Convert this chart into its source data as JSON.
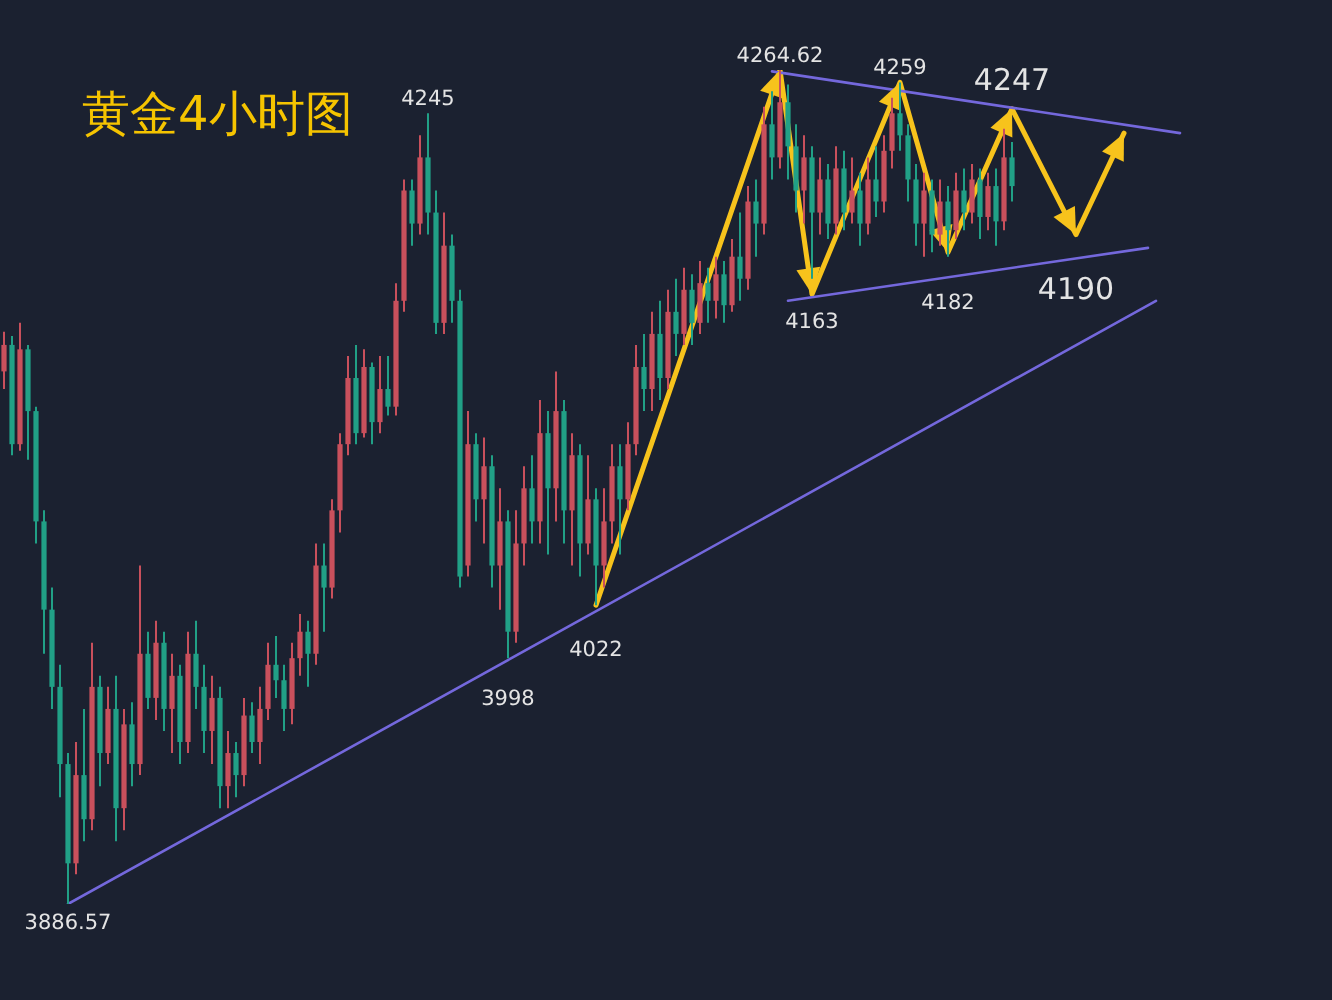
{
  "chart_data": {
    "type": "candlestick",
    "title": "黄金4小时图",
    "tick_labels": false,
    "categories": [
      null,
      null,
      null,
      null,
      null,
      null,
      null,
      null,
      null,
      null,
      null,
      null,
      null,
      null,
      null,
      null,
      null,
      null,
      null,
      null,
      null,
      null,
      null,
      null,
      null,
      null,
      null,
      null,
      null,
      null,
      null,
      null,
      null,
      null,
      null,
      null,
      null,
      null,
      null,
      null,
      null,
      null,
      null,
      null,
      null,
      null,
      null,
      null,
      null,
      null,
      null,
      null,
      null,
      null,
      null,
      null,
      null,
      null,
      null,
      null,
      null,
      null,
      null,
      null,
      null,
      null,
      null,
      null,
      null,
      null,
      null,
      null,
      null,
      null,
      null,
      null,
      null,
      null,
      null,
      null,
      null,
      null,
      null,
      null,
      null,
      null,
      null,
      null,
      null,
      null,
      null,
      null,
      null,
      null,
      null,
      null,
      null,
      null,
      null,
      null,
      null,
      null,
      null,
      null,
      null,
      null,
      null,
      null,
      null,
      null,
      null,
      null,
      null,
      null,
      null,
      null,
      null,
      null,
      null,
      null,
      null,
      null,
      null,
      null,
      null,
      null,
      null,
      null,
      null,
      null,
      null,
      null,
      null,
      null,
      null,
      null,
      null,
      null,
      null,
      null,
      null,
      null,
      null,
      null,
      null,
      null,
      null,
      null
    ],
    "ohlc": [
      [
        4128,
        4146,
        4120,
        4140
      ],
      [
        4140,
        4144,
        4090,
        4095
      ],
      [
        4095,
        4150,
        4092,
        4138
      ],
      [
        4138,
        4140,
        4088,
        4110
      ],
      [
        4110,
        4112,
        4050,
        4060
      ],
      [
        4060,
        4065,
        4000,
        4020
      ],
      [
        4020,
        4030,
        3975,
        3985
      ],
      [
        3985,
        3995,
        3935,
        3950
      ],
      [
        3950,
        3955,
        3886.57,
        3905
      ],
      [
        3905,
        3960,
        3900,
        3945
      ],
      [
        3945,
        3975,
        3915,
        3925
      ],
      [
        3925,
        4005,
        3920,
        3985
      ],
      [
        3985,
        3990,
        3940,
        3955
      ],
      [
        3955,
        3985,
        3950,
        3975
      ],
      [
        3975,
        3990,
        3915,
        3930
      ],
      [
        3930,
        3975,
        3920,
        3968
      ],
      [
        3968,
        3978,
        3940,
        3950
      ],
      [
        3950,
        4040,
        3945,
        4000
      ],
      [
        4000,
        4010,
        3975,
        3980
      ],
      [
        3980,
        4015,
        3970,
        4005
      ],
      [
        4005,
        4010,
        3965,
        3975
      ],
      [
        3975,
        4000,
        3955,
        3990
      ],
      [
        3990,
        3995,
        3950,
        3960
      ],
      [
        3960,
        4010,
        3955,
        4000
      ],
      [
        4000,
        4015,
        3975,
        3985
      ],
      [
        3985,
        3995,
        3955,
        3965
      ],
      [
        3965,
        3990,
        3950,
        3980
      ],
      [
        3980,
        3985,
        3930,
        3940
      ],
      [
        3940,
        3965,
        3930,
        3955
      ],
      [
        3955,
        3960,
        3935,
        3945
      ],
      [
        3945,
        3980,
        3940,
        3972
      ],
      [
        3972,
        3978,
        3955,
        3960
      ],
      [
        3960,
        3985,
        3950,
        3975
      ],
      [
        3975,
        4005,
        3970,
        3995
      ],
      [
        3995,
        4008,
        3980,
        3988
      ],
      [
        3988,
        3995,
        3965,
        3975
      ],
      [
        3975,
        4005,
        3968,
        3998
      ],
      [
        3998,
        4018,
        3990,
        4010
      ],
      [
        4010,
        4015,
        3985,
        4000
      ],
      [
        4000,
        4050,
        3995,
        4040
      ],
      [
        4040,
        4050,
        4010,
        4030
      ],
      [
        4030,
        4070,
        4025,
        4065
      ],
      [
        4065,
        4100,
        4055,
        4095
      ],
      [
        4095,
        4135,
        4090,
        4125
      ],
      [
        4125,
        4140,
        4095,
        4100
      ],
      [
        4100,
        4138,
        4098,
        4130
      ],
      [
        4130,
        4132,
        4095,
        4105
      ],
      [
        4105,
        4135,
        4100,
        4120
      ],
      [
        4120,
        4135,
        4108,
        4112
      ],
      [
        4112,
        4168,
        4108,
        4160
      ],
      [
        4160,
        4215,
        4155,
        4210
      ],
      [
        4210,
        4215,
        4185,
        4195
      ],
      [
        4195,
        4235,
        4190,
        4225
      ],
      [
        4225,
        4245,
        4190,
        4200
      ],
      [
        4200,
        4210,
        4145,
        4150
      ],
      [
        4150,
        4200,
        4145,
        4185
      ],
      [
        4185,
        4190,
        4150,
        4160
      ],
      [
        4160,
        4165,
        4030,
        4035
      ],
      [
        4040,
        4110,
        4035,
        4095
      ],
      [
        4095,
        4100,
        4060,
        4070
      ],
      [
        4070,
        4098,
        4050,
        4085
      ],
      [
        4085,
        4090,
        4030,
        4040
      ],
      [
        4040,
        4075,
        4020,
        4060
      ],
      [
        4060,
        4065,
        3998,
        4010
      ],
      [
        4010,
        4065,
        4005,
        4050
      ],
      [
        4050,
        4085,
        4040,
        4075
      ],
      [
        4075,
        4090,
        4050,
        4060
      ],
      [
        4060,
        4115,
        4050,
        4100
      ],
      [
        4100,
        4110,
        4045,
        4075
      ],
      [
        4075,
        4128,
        4060,
        4110
      ],
      [
        4110,
        4115,
        4050,
        4065
      ],
      [
        4065,
        4100,
        4040,
        4090
      ],
      [
        4090,
        4095,
        4035,
        4050
      ],
      [
        4050,
        4090,
        4045,
        4070
      ],
      [
        4070,
        4075,
        4022,
        4040
      ],
      [
        4040,
        4075,
        4030,
        4060
      ],
      [
        4060,
        4095,
        4050,
        4085
      ],
      [
        4085,
        4095,
        4045,
        4070
      ],
      [
        4070,
        4105,
        4065,
        4095
      ],
      [
        4095,
        4140,
        4090,
        4130
      ],
      [
        4130,
        4145,
        4110,
        4120
      ],
      [
        4120,
        4155,
        4110,
        4145
      ],
      [
        4145,
        4160,
        4115,
        4125
      ],
      [
        4125,
        4165,
        4120,
        4155
      ],
      [
        4155,
        4170,
        4135,
        4145
      ],
      [
        4145,
        4175,
        4140,
        4165
      ],
      [
        4165,
        4172,
        4140,
        4150
      ],
      [
        4150,
        4178,
        4145,
        4168
      ],
      [
        4168,
        4175,
        4150,
        4160
      ],
      [
        4160,
        4180,
        4152,
        4172
      ],
      [
        4172,
        4178,
        4150,
        4158
      ],
      [
        4158,
        4188,
        4155,
        4180
      ],
      [
        4180,
        4200,
        4160,
        4170
      ],
      [
        4170,
        4212,
        4165,
        4205
      ],
      [
        4205,
        4215,
        4180,
        4195
      ],
      [
        4195,
        4248,
        4190,
        4240
      ],
      [
        4240,
        4255,
        4215,
        4225
      ],
      [
        4225,
        4264.62,
        4220,
        4250
      ],
      [
        4250,
        4258,
        4215,
        4230
      ],
      [
        4230,
        4240,
        4200,
        4210
      ],
      [
        4210,
        4235,
        4195,
        4225
      ],
      [
        4225,
        4230,
        4170,
        4200
      ],
      [
        4200,
        4225,
        4190,
        4215
      ],
      [
        4215,
        4222,
        4188,
        4195
      ],
      [
        4195,
        4230,
        4190,
        4220
      ],
      [
        4220,
        4228,
        4192,
        4200
      ],
      [
        4200,
        4225,
        4195,
        4210
      ],
      [
        4210,
        4218,
        4185,
        4195
      ],
      [
        4195,
        4225,
        4190,
        4215
      ],
      [
        4215,
        4230,
        4198,
        4205
      ],
      [
        4205,
        4235,
        4200,
        4228
      ],
      [
        4228,
        4252,
        4220,
        4245
      ],
      [
        4245,
        4259,
        4228,
        4235
      ],
      [
        4235,
        4240,
        4205,
        4215
      ],
      [
        4215,
        4222,
        4185,
        4195
      ],
      [
        4195,
        4218,
        4180,
        4210
      ],
      [
        4210,
        4215,
        4182,
        4190
      ],
      [
        4190,
        4215,
        4185,
        4205
      ],
      [
        4205,
        4212,
        4180,
        4192
      ],
      [
        4192,
        4218,
        4188,
        4210
      ],
      [
        4210,
        4220,
        4192,
        4200
      ],
      [
        4200,
        4222,
        4195,
        4215
      ],
      [
        4215,
        4220,
        4188,
        4198
      ],
      [
        4198,
        4218,
        4192,
        4212
      ],
      [
        4212,
        4220,
        4185,
        4196
      ],
      [
        4196,
        4238,
        4192,
        4225
      ],
      [
        4225,
        4232,
        4205,
        4212
      ],
      null,
      null,
      null,
      null,
      null,
      null,
      null,
      null,
      null,
      null,
      null,
      null,
      null,
      null,
      null,
      null,
      null,
      null,
      null,
      null,
      null
    ],
    "colors": [
      "#c9505c",
      "#21a086",
      "#c9505c",
      "#21a086",
      "#21a086",
      "#21a086",
      "#21a086",
      "#21a086",
      "#21a086",
      "#c9505c",
      "#21a086",
      "#c9505c",
      "#21a086",
      "#c9505c",
      "#21a086",
      "#c9505c",
      "#21a086",
      "#c9505c",
      "#21a086",
      "#c9505c",
      "#21a086",
      "#c9505c",
      "#21a086",
      "#c9505c",
      "#21a086",
      "#21a086",
      "#c9505c",
      "#21a086",
      "#c9505c",
      "#21a086",
      "#c9505c",
      "#21a086",
      "#c9505c",
      "#c9505c",
      "#21a086",
      "#21a086",
      "#c9505c",
      "#c9505c",
      "#21a086",
      "#c9505c",
      "#21a086",
      "#c9505c",
      "#c9505c",
      "#c9505c",
      "#21a086",
      "#c9505c",
      "#21a086",
      "#c9505c",
      "#21a086",
      "#c9505c",
      "#c9505c",
      "#21a086",
      "#c9505c",
      "#21a086",
      "#21a086",
      "#c9505c",
      "#21a086",
      "#21a086",
      "#c9505c",
      "#21a086",
      "#c9505c",
      "#21a086",
      "#c9505c",
      "#21a086",
      "#c9505c",
      "#c9505c",
      "#21a086",
      "#c9505c",
      "#21a086",
      "#c9505c",
      "#21a086",
      "#c9505c",
      "#21a086",
      "#c9505c",
      "#21a086",
      "#c9505c",
      "#c9505c",
      "#21a086",
      "#c9505c",
      "#c9505c",
      "#21a086",
      "#c9505c",
      "#21a086",
      "#c9505c",
      "#21a086",
      "#c9505c",
      "#21a086",
      "#c9505c",
      "#21a086",
      "#c9505c",
      "#21a086",
      "#c9505c",
      "#21a086",
      "#c9505c",
      "#21a086",
      "#c9505c",
      "#21a086",
      "#c9505c",
      "#21a086",
      "#21a086",
      "#c9505c",
      "#21a086",
      "#c9505c",
      "#21a086",
      "#c9505c",
      "#21a086",
      "#c9505c",
      "#21a086",
      "#c9505c",
      "#21a086",
      "#c9505c",
      "#c9505c",
      "#21a086",
      "#21a086",
      "#21a086",
      "#c9505c",
      "#21a086",
      "#c9505c",
      "#21a086",
      "#c9505c",
      "#21a086",
      "#c9505c",
      "#21a086",
      "#c9505c",
      "#21a086",
      "#c9505c",
      "#21a086",
      null,
      null,
      null,
      null,
      null,
      null,
      null,
      null,
      null,
      null,
      null,
      null,
      null,
      null,
      null,
      null,
      null,
      null,
      null,
      null,
      null
    ],
    "series": [
      {
        "type": "line",
        "color": "#f7c31c",
        "values": [
          null,
          null,
          null,
          null,
          null,
          null,
          null,
          null,
          null,
          null,
          null,
          null,
          null,
          null,
          null,
          null,
          null,
          null,
          null,
          null,
          null,
          null,
          null,
          null,
          null,
          null,
          null,
          null,
          null,
          null,
          null,
          null,
          null,
          null,
          null,
          null,
          null,
          null,
          null,
          null,
          null,
          null,
          null,
          null,
          null,
          null,
          null,
          null,
          null,
          null,
          null,
          null,
          null,
          null,
          null,
          null,
          null,
          null,
          null,
          null,
          null,
          null,
          null,
          null,
          null,
          null,
          null,
          null,
          null,
          null,
          null,
          null,
          null,
          null,
          4022,
          null,
          null,
          null,
          null,
          null,
          null,
          null,
          null,
          null,
          null,
          null,
          null,
          null,
          null,
          null,
          null,
          null,
          null,
          null,
          null,
          null,
          null,
          4264.62,
          null,
          null,
          null,
          4163,
          null,
          null,
          null,
          null,
          null,
          null,
          null,
          null,
          null,
          null,
          4259,
          null,
          null,
          null,
          null,
          null,
          4182,
          null,
          null,
          null,
          null,
          null,
          null,
          null,
          4247,
          null,
          null,
          null,
          null,
          null,
          null,
          null,
          4190,
          null,
          null,
          null,
          null,
          null,
          4236,
          null,
          null,
          null,
          null,
          null,
          null,
          null
        ]
      },
      {
        "type": "line",
        "color": "#7468dc",
        "values": [
          null,
          null,
          null,
          null,
          null,
          null,
          null,
          null,
          null,
          null,
          null,
          null,
          null,
          null,
          null,
          null,
          null,
          null,
          null,
          null,
          null,
          null,
          null,
          null,
          null,
          null,
          null,
          null,
          null,
          null,
          null,
          null,
          null,
          null,
          null,
          null,
          null,
          null,
          null,
          null,
          null,
          null,
          null,
          null,
          null,
          null,
          null,
          null,
          null,
          null,
          null,
          null,
          null,
          null,
          null,
          null,
          null,
          null,
          null,
          null,
          null,
          null,
          null,
          null,
          null,
          null,
          null,
          null,
          null,
          null,
          null,
          null,
          null,
          null,
          null,
          null,
          null,
          null,
          null,
          null,
          null,
          null,
          null,
          null,
          null,
          null,
          null,
          null,
          null,
          null,
          null,
          null,
          null,
          null,
          null,
          null,
          4264,
          null,
          null,
          null,
          null,
          null,
          null,
          null,
          null,
          null,
          null,
          null,
          null,
          null,
          null,
          null,
          null,
          null,
          null,
          null,
          null,
          null,
          null,
          null,
          null,
          null,
          null,
          null,
          null,
          null,
          null,
          null,
          null,
          null,
          null,
          null,
          null,
          null,
          null,
          null,
          null,
          null,
          null,
          null,
          null,
          null,
          null,
          null,
          null,
          null,
          null,
          4236
        ]
      },
      {
        "type": "line",
        "color": "#7468dc",
        "values": [
          null,
          null,
          null,
          null,
          null,
          null,
          null,
          null,
          null,
          null,
          null,
          null,
          null,
          null,
          null,
          null,
          null,
          null,
          null,
          null,
          null,
          null,
          null,
          null,
          null,
          null,
          null,
          null,
          null,
          null,
          null,
          null,
          null,
          null,
          null,
          null,
          null,
          null,
          null,
          null,
          null,
          null,
          null,
          null,
          null,
          null,
          null,
          null,
          null,
          null,
          null,
          null,
          null,
          null,
          null,
          null,
          null,
          null,
          null,
          null,
          null,
          null,
          null,
          null,
          null,
          null,
          null,
          null,
          null,
          null,
          null,
          null,
          null,
          null,
          null,
          null,
          null,
          null,
          null,
          null,
          null,
          null,
          null,
          null,
          null,
          null,
          null,
          null,
          null,
          null,
          null,
          null,
          null,
          null,
          null,
          null,
          null,
          null,
          4160,
          null,
          null,
          null,
          null,
          null,
          null,
          null,
          null,
          null,
          null,
          null,
          null,
          null,
          null,
          null,
          null,
          null,
          null,
          null,
          null,
          null,
          null,
          null,
          null,
          null,
          null,
          null,
          null,
          null,
          null,
          null,
          null,
          null,
          null,
          null,
          null,
          null,
          null,
          null,
          null,
          null,
          null,
          null,
          null,
          4184,
          null,
          null,
          null,
          null
        ]
      },
      {
        "type": "line",
        "color": "#7468dc",
        "values": [
          null,
          null,
          null,
          null,
          null,
          null,
          null,
          null,
          3886.57,
          null,
          null,
          null,
          null,
          null,
          null,
          null,
          null,
          null,
          null,
          null,
          null,
          null,
          null,
          null,
          null,
          null,
          null,
          null,
          null,
          null,
          null,
          null,
          null,
          null,
          null,
          null,
          null,
          null,
          null,
          null,
          null,
          null,
          null,
          null,
          null,
          null,
          null,
          null,
          null,
          null,
          null,
          null,
          null,
          null,
          null,
          null,
          null,
          null,
          null,
          null,
          null,
          null,
          null,
          null,
          null,
          null,
          null,
          null,
          null,
          null,
          null,
          null,
          null,
          null,
          null,
          null,
          null,
          null,
          null,
          null,
          null,
          null,
          null,
          null,
          null,
          null,
          null,
          null,
          null,
          null,
          null,
          null,
          null,
          null,
          null,
          null,
          null,
          null,
          null,
          null,
          null,
          null,
          null,
          null,
          null,
          null,
          null,
          null,
          null,
          null,
          null,
          null,
          null,
          null,
          null,
          null,
          null,
          null,
          null,
          null,
          null,
          null,
          null,
          null,
          null,
          null,
          null,
          null,
          null,
          null,
          null,
          null,
          null,
          null,
          null,
          null,
          null,
          null,
          null,
          null,
          null,
          null,
          null,
          null,
          4160,
          null,
          null,
          null
        ]
      }
    ],
    "annotations": [
      {
        "text": "4245",
        "y": 4245
      },
      {
        "text": "4264.62",
        "y": 4264.62
      },
      {
        "text": "4259",
        "y": 4259
      },
      {
        "text": "4247",
        "y": 4247
      },
      {
        "text": "3998",
        "y": 3998
      },
      {
        "text": "4022",
        "y": 4022
      },
      {
        "text": "4163",
        "y": 4163
      },
      {
        "text": "4182",
        "y": 4182
      },
      {
        "text": "4190",
        "y": 4190
      },
      {
        "text": "3886.57",
        "y": 3886.57
      }
    ]
  }
}
